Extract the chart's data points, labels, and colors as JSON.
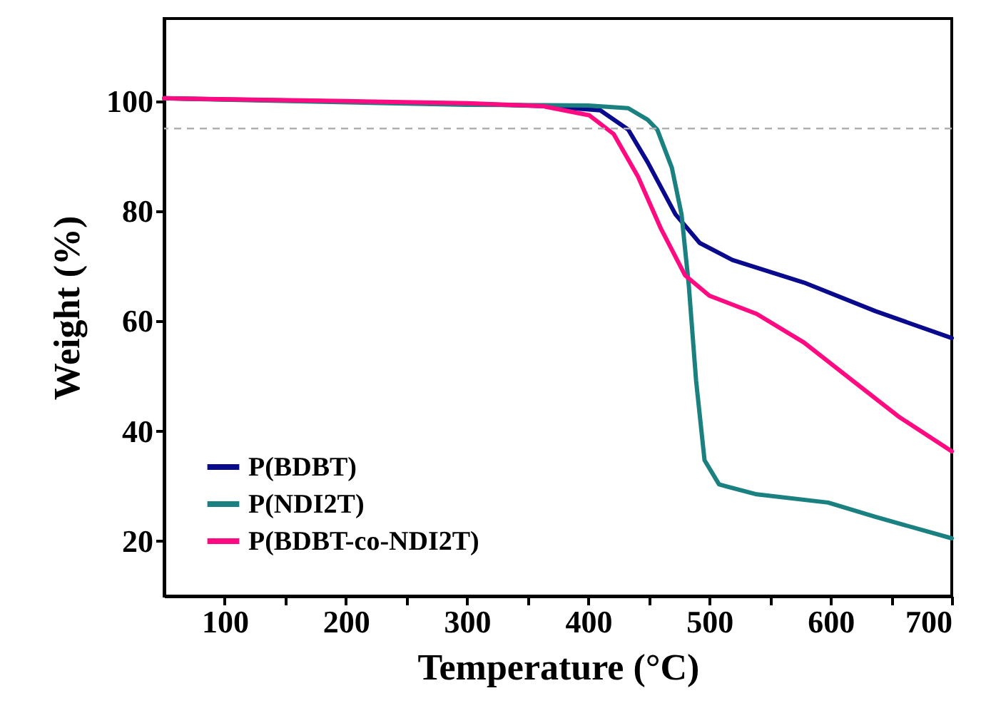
{
  "chart_data": {
    "type": "line",
    "xlabel": "Temperature (°C)",
    "ylabel": "Weight (%)",
    "xlim": [
      50,
      700
    ],
    "ylim": [
      10,
      115
    ],
    "xticks": [
      100,
      {
        "value": 150,
        "label": null
      },
      200,
      {
        "value": 250,
        "label": null
      },
      300,
      {
        "value": 350,
        "label": null
      },
      400,
      {
        "value": 450,
        "label": null
      },
      500,
      {
        "value": 550,
        "label": null
      },
      600,
      {
        "value": 650,
        "label": null
      },
      700
    ],
    "yticks": [
      20,
      40,
      60,
      80,
      100
    ],
    "grid": false,
    "legend": "bottom left",
    "marker": "none",
    "line_style": "solid",
    "ref_lines": [
      {
        "axis": "y",
        "value": 95,
        "color": "#b0b0b0",
        "line_style": "dashed"
      }
    ],
    "series": [
      {
        "name": "P(BDBT)",
        "color": "#0a0a8c",
        "x": [
          50,
          300,
          362,
          410,
          433,
          449,
          472,
          492,
          519,
          578,
          637,
          700
        ],
        "values": [
          100.5,
          99.5,
          99.1,
          98.3,
          94.8,
          88.9,
          79.4,
          74.2,
          71.1,
          67,
          61.8,
          56.9
        ]
      },
      {
        "name": "P(NDI2T)",
        "color": "#1a8080",
        "x": [
          50,
          300,
          400,
          433,
          449,
          457,
          469,
          477,
          483,
          489,
          496,
          508,
          539,
          598,
          637,
          700
        ],
        "values": [
          100.5,
          99.3,
          99.2,
          98.7,
          96.6,
          94.8,
          87.9,
          79.4,
          66.5,
          49.2,
          34.7,
          30.3,
          28.5,
          27,
          24.4,
          20.5
        ]
      },
      {
        "name": "P(BDBT-co-NDI2T)",
        "color": "#ff0a80",
        "x": [
          50,
          200,
          300,
          362,
          401,
          421,
          441,
          460,
          480,
          500,
          539,
          578,
          618,
          657,
          700
        ],
        "values": [
          100.5,
          100,
          99.6,
          99.1,
          97.4,
          94,
          86.3,
          76.8,
          68.3,
          64.6,
          61.3,
          56.1,
          49.2,
          42.5,
          36.3
        ]
      }
    ]
  }
}
